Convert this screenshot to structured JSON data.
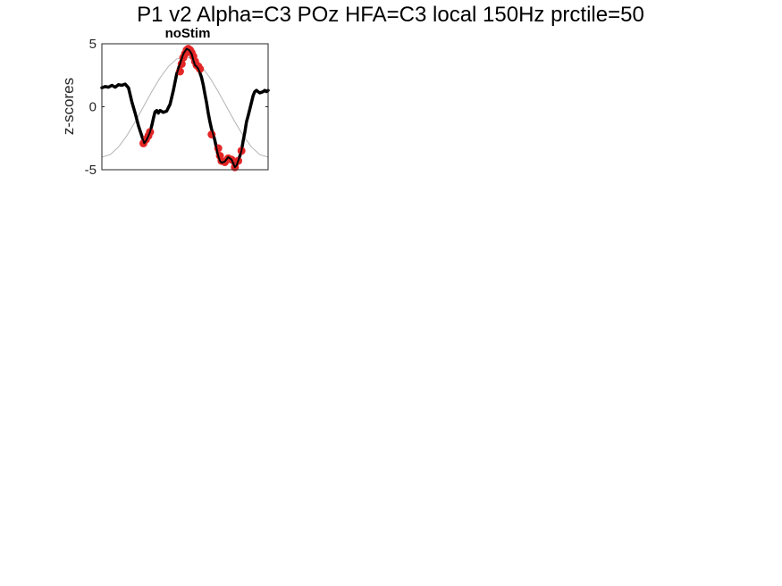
{
  "figure": {
    "suptitle": "P1 v2 Alpha=C3 POz HFA=C3 local 150Hz prctile=50"
  },
  "chart_data": {
    "type": "line",
    "title": "noStim",
    "xlabel": "",
    "ylabel": "z-scores",
    "ylim": [
      -5,
      5
    ],
    "yticks": [
      -5,
      0,
      5
    ],
    "xlim": [
      0,
      1
    ],
    "xticks": [],
    "grid": false,
    "colors": {
      "signal": "#000000",
      "reference": "#b3b3b3",
      "markers": "#e32626"
    },
    "series": [
      {
        "role": "signal",
        "x": [
          0.0,
          0.02,
          0.04,
          0.06,
          0.08,
          0.1,
          0.12,
          0.14,
          0.16,
          0.18,
          0.2,
          0.22,
          0.24,
          0.255,
          0.27,
          0.28,
          0.29,
          0.3,
          0.31,
          0.32,
          0.33,
          0.34,
          0.35,
          0.37,
          0.39,
          0.41,
          0.43,
          0.45,
          0.47,
          0.49,
          0.51,
          0.525,
          0.54,
          0.55,
          0.56,
          0.57,
          0.58,
          0.59,
          0.6,
          0.61,
          0.62,
          0.63,
          0.64,
          0.65,
          0.66,
          0.67,
          0.68,
          0.69,
          0.7,
          0.71,
          0.72,
          0.73,
          0.74,
          0.76,
          0.78,
          0.8,
          0.81,
          0.82,
          0.83,
          0.84,
          0.85,
          0.86,
          0.87,
          0.88,
          0.89,
          0.9,
          0.91,
          0.92,
          0.93,
          0.94,
          0.95,
          0.96,
          0.97,
          0.98,
          0.99,
          1.0
        ],
        "y": [
          1.5,
          1.6,
          1.55,
          1.7,
          1.55,
          1.75,
          1.7,
          1.8,
          1.5,
          0.4,
          -0.5,
          -1.5,
          -2.3,
          -2.9,
          -2.6,
          -2.3,
          -2.0,
          -1.5,
          -0.9,
          -0.4,
          -0.3,
          -0.5,
          -0.3,
          -0.45,
          -0.35,
          0.2,
          1.3,
          2.6,
          3.4,
          4.2,
          4.6,
          4.5,
          4.2,
          3.7,
          3.3,
          3.2,
          3.0,
          2.7,
          2.3,
          1.7,
          1.0,
          0.3,
          -0.5,
          -1.2,
          -1.8,
          -2.2,
          -2.7,
          -3.3,
          -3.9,
          -4.3,
          -4.45,
          -4.4,
          -4.35,
          -4.0,
          -4.2,
          -4.8,
          -4.65,
          -4.3,
          -3.9,
          -3.5,
          -2.7,
          -2.0,
          -1.2,
          -0.7,
          -0.2,
          0.35,
          0.9,
          1.2,
          1.3,
          1.2,
          1.1,
          1.15,
          1.2,
          1.3,
          1.2,
          1.3
        ]
      },
      {
        "role": "reference",
        "x": [
          0.0,
          0.05,
          0.1,
          0.15,
          0.2,
          0.25,
          0.3,
          0.35,
          0.4,
          0.45,
          0.5,
          0.55,
          0.6,
          0.65,
          0.7,
          0.75,
          0.8,
          0.85,
          0.9,
          0.95,
          1.0
        ],
        "y": [
          -4.0,
          -3.8,
          -3.2,
          -2.3,
          -1.2,
          0.0,
          1.2,
          2.3,
          3.2,
          3.8,
          4.0,
          3.8,
          3.2,
          2.3,
          1.2,
          0.0,
          -1.2,
          -2.3,
          -3.2,
          -3.8,
          -4.0
        ]
      }
    ],
    "markers": {
      "x": [
        0.25,
        0.265,
        0.28,
        0.29,
        0.5,
        0.51,
        0.52,
        0.53,
        0.54,
        0.55,
        0.56,
        0.57,
        0.58,
        0.59,
        0.49,
        0.48,
        0.47,
        0.66,
        0.7,
        0.71,
        0.72,
        0.74,
        0.76,
        0.78,
        0.8,
        0.82,
        0.84
      ],
      "y": [
        -2.9,
        -2.6,
        -2.3,
        -2.0,
        4.2,
        4.5,
        4.6,
        4.5,
        4.3,
        4.0,
        3.6,
        3.3,
        3.2,
        3.0,
        3.9,
        3.4,
        2.8,
        -2.2,
        -3.3,
        -3.9,
        -4.3,
        -4.4,
        -4.1,
        -4.2,
        -4.8,
        -4.3,
        -3.5
      ]
    }
  }
}
